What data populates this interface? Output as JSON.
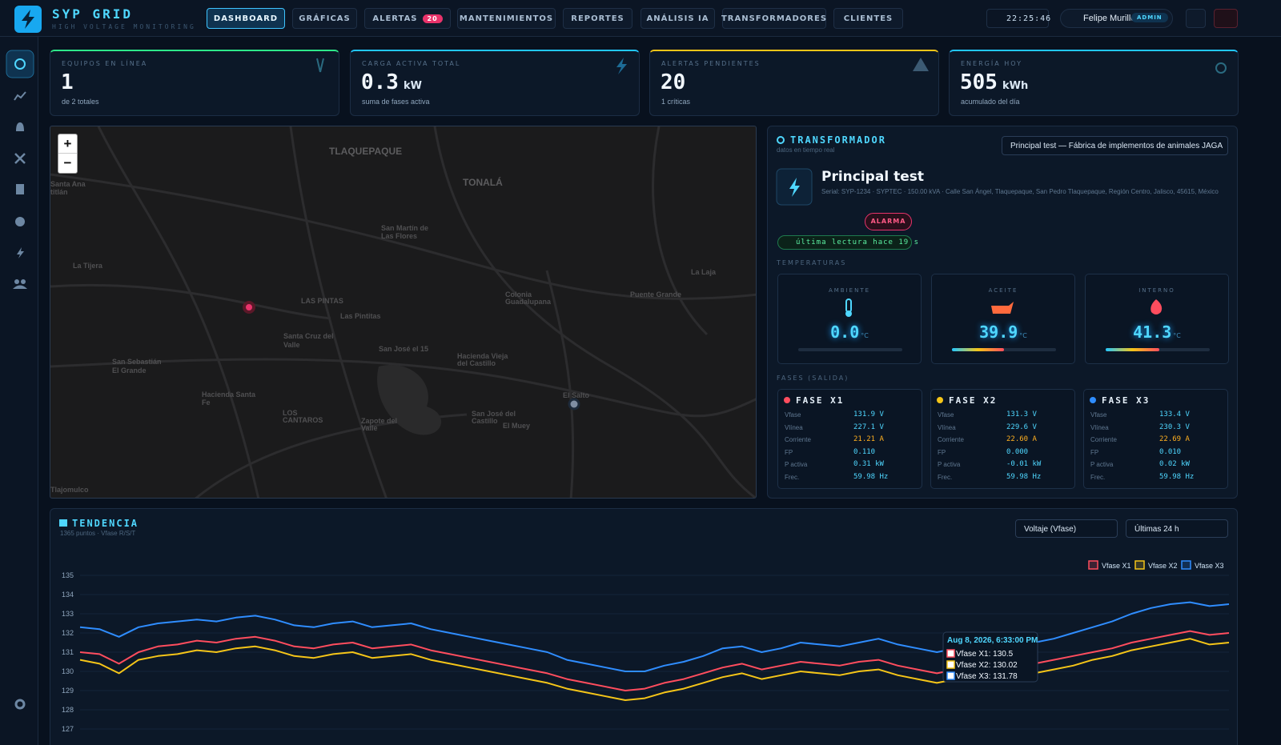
{
  "header": {
    "title": "SYP GRID",
    "subtitle": "HIGH VOLTAGE MONITORING",
    "nav": [
      {
        "label": "DASHBOARD"
      },
      {
        "label": "GRÁFICAS"
      },
      {
        "label": "ALERTAS",
        "badge": "20"
      },
      {
        "label": "MANTENIMIENTOS"
      },
      {
        "label": "REPORTES"
      },
      {
        "label": "ANÁLISIS IA"
      },
      {
        "label": "TRANSFORMADORES"
      },
      {
        "label": "CLIENTES"
      }
    ],
    "clock": "22:25:46",
    "user": "Felipe Murillo",
    "role": "ADMIN"
  },
  "kpis": [
    {
      "label": "EQUIPOS EN LÍNEA",
      "value": "1",
      "sub": "de 2 totales"
    },
    {
      "label": "CARGA ACTIVA TOTAL",
      "value": "0.3",
      "unit": "kW",
      "sub": "suma de fases activa"
    },
    {
      "label": "ALERTAS PENDIENTES",
      "value": "20",
      "sub": "1 críticas"
    },
    {
      "label": "ENERGÍA HOY",
      "value": "505",
      "unit": "kWh",
      "sub": "acumulado del día"
    }
  ],
  "map": {
    "zoom_in": "+",
    "zoom_out": "−",
    "labels": [
      "Santa Ana",
      "titlán",
      "TLAQUEPAQUE",
      "TONALÁ",
      "San Martín de",
      "Las Flores",
      "La Tijera",
      "LAS PINTAS",
      "Las Pintitas",
      "Santa Cruz del",
      "Valle",
      "Colonia",
      "Guadalupana",
      "Puente Grande",
      "La Laja",
      "San José el 15",
      "Hacienda Vieja",
      "del Castillo",
      "San Sebastián",
      "El Grande",
      "Hacienda Santa",
      "Fe",
      "LOS",
      "CANTAROS",
      "Zapote del",
      "Valle",
      "San José del",
      "Castillo",
      "El Muey",
      "El Salto",
      "Tlajomulco"
    ]
  },
  "transformer": {
    "title": "TRANSFORMADOR",
    "subtitle": "datos en tiempo real",
    "select": "Principal test — Fábrica de implementos de animales JAGA",
    "name": "Principal test",
    "details": "Serial: SYP-1234 · SYPTEC · 150.00 kVA · Calle San Ángel, Tlaquepaque, San Pedro Tlaquepaque, Región Centro, Jalisco, 45615, México",
    "status": "ALARMA",
    "last_reading": "última lectura hace 19 s",
    "temps_heading": "TEMPERATURAS",
    "temps": [
      {
        "label": "AMBIENTE",
        "value": "0.0",
        "unit": "°C"
      },
      {
        "label": "ACEITE",
        "value": "39.9",
        "unit": "°C"
      },
      {
        "label": "INTERNO",
        "value": "41.3",
        "unit": "°C"
      }
    ],
    "phases_heading": "FASES (SALIDA)",
    "phases": [
      {
        "name": "FASE X1",
        "rows": [
          [
            "Vfase",
            "131.9 V"
          ],
          [
            "Vlínea",
            "227.1 V"
          ],
          [
            "Corriente",
            "21.21 A"
          ],
          [
            "FP",
            "0.110"
          ],
          [
            "P activa",
            "0.31 kW"
          ],
          [
            "Frec.",
            "59.98 Hz"
          ]
        ]
      },
      {
        "name": "FASE X2",
        "rows": [
          [
            "Vfase",
            "131.3 V"
          ],
          [
            "Vlínea",
            "229.6 V"
          ],
          [
            "Corriente",
            "22.60 A"
          ],
          [
            "FP",
            "0.000"
          ],
          [
            "P activa",
            "-0.01 kW"
          ],
          [
            "Frec.",
            "59.98 Hz"
          ]
        ]
      },
      {
        "name": "FASE X3",
        "rows": [
          [
            "Vfase",
            "133.4 V"
          ],
          [
            "Vlínea",
            "230.3 V"
          ],
          [
            "Corriente",
            "22.69 A"
          ],
          [
            "FP",
            "0.010"
          ],
          [
            "P activa",
            "0.02 kW"
          ],
          [
            "Frec.",
            "59.98 Hz"
          ]
        ]
      }
    ]
  },
  "trend": {
    "title": "TENDENCIA",
    "subtitle": "1365 puntos · Vfase R/S/T",
    "metric_select": "Voltaje (Vfase)",
    "range_select": "Últimas 24 h"
  },
  "chart_data": {
    "type": "line",
    "ylim": [
      127,
      135
    ],
    "yticks": [
      127,
      128,
      129,
      130,
      131,
      132,
      133,
      134,
      135
    ],
    "grid": true,
    "legend": "top-right",
    "series": [
      {
        "name": "Vfase X1",
        "color": "#ff4d5e",
        "values": [
          131.0,
          130.9,
          130.4,
          131.0,
          131.3,
          131.4,
          131.6,
          131.5,
          131.7,
          131.8,
          131.6,
          131.3,
          131.2,
          131.4,
          131.5,
          131.2,
          131.3,
          131.4,
          131.1,
          130.9,
          130.7,
          130.5,
          130.3,
          130.1,
          129.9,
          129.6,
          129.4,
          129.2,
          129.0,
          129.1,
          129.4,
          129.6,
          129.9,
          130.2,
          130.4,
          130.1,
          130.3,
          130.5,
          130.4,
          130.3,
          130.5,
          130.6,
          130.3,
          130.1,
          129.9,
          130.1,
          130.3,
          130.5,
          130.7,
          130.4,
          130.6,
          130.8,
          131.0,
          131.2,
          131.5,
          131.7,
          131.9,
          132.1,
          131.9,
          132.0
        ]
      },
      {
        "name": "Vfase X2",
        "color": "#f5c518",
        "values": [
          130.6,
          130.4,
          129.9,
          130.6,
          130.8,
          130.9,
          131.1,
          131.0,
          131.2,
          131.3,
          131.1,
          130.8,
          130.7,
          130.9,
          131.0,
          130.7,
          130.8,
          130.9,
          130.6,
          130.4,
          130.2,
          130.0,
          129.8,
          129.6,
          129.4,
          129.1,
          128.9,
          128.7,
          128.5,
          128.6,
          128.9,
          129.1,
          129.4,
          129.7,
          129.9,
          129.6,
          129.8,
          130.0,
          129.9,
          129.8,
          130.0,
          130.1,
          129.8,
          129.6,
          129.4,
          129.6,
          129.8,
          130.0,
          130.2,
          129.9,
          130.1,
          130.3,
          130.6,
          130.8,
          131.1,
          131.3,
          131.5,
          131.7,
          131.4,
          131.5
        ]
      },
      {
        "name": "Vfase X3",
        "color": "#2f8dff",
        "values": [
          132.3,
          132.2,
          131.8,
          132.3,
          132.5,
          132.6,
          132.7,
          132.6,
          132.8,
          132.9,
          132.7,
          132.4,
          132.3,
          132.5,
          132.6,
          132.3,
          132.4,
          132.5,
          132.2,
          132.0,
          131.8,
          131.6,
          131.4,
          131.2,
          131.0,
          130.6,
          130.4,
          130.2,
          130.0,
          130.0,
          130.3,
          130.5,
          130.8,
          131.2,
          131.3,
          131.0,
          131.2,
          131.5,
          131.4,
          131.3,
          131.5,
          131.7,
          131.4,
          131.2,
          131.0,
          131.2,
          131.4,
          131.6,
          131.8,
          131.5,
          131.7,
          132.0,
          132.3,
          132.6,
          133.0,
          133.3,
          133.5,
          133.6,
          133.4,
          133.5
        ]
      }
    ],
    "tooltip": {
      "title": "Aug 8, 2026, 6:33:00 PM",
      "lines": [
        "Vfase X1: 130.5",
        "Vfase X2: 130.02",
        "Vfase X3: 131.78"
      ]
    }
  }
}
